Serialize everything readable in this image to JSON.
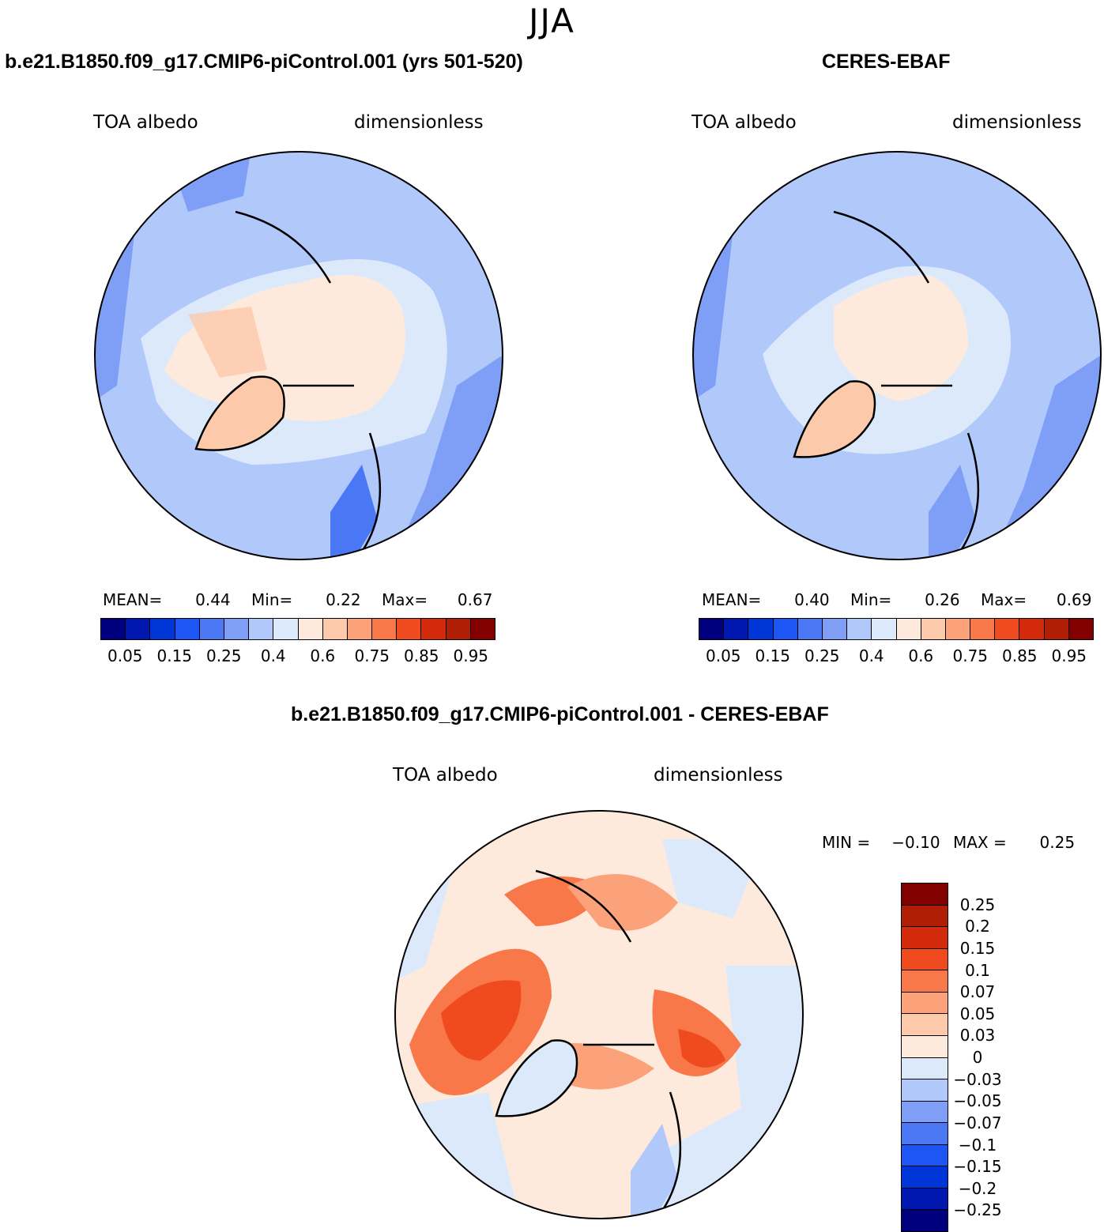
{
  "title": "JJA",
  "panels": [
    {
      "id": "model",
      "title": "b.e21.B1850.f09_g17.CMIP6-piControl.001 (yrs 501-520)",
      "left_label": "TOA albedo",
      "right_label": "dimensionless",
      "stats": {
        "mean_label": "MEAN=",
        "mean": "0.44",
        "min_label": "Min=",
        "min": "0.22",
        "max_label": "Max=",
        "max": "0.67"
      }
    },
    {
      "id": "obs",
      "title": "CERES-EBAF",
      "left_label": "TOA albedo",
      "right_label": "dimensionless",
      "stats": {
        "mean_label": "MEAN=",
        "mean": "0.40",
        "min_label": "Min=",
        "min": "0.26",
        "max_label": "Max=",
        "max": "0.69"
      }
    },
    {
      "id": "diff",
      "title": "b.e21.B1850.f09_g17.CMIP6-piControl.001 - CERES-EBAF",
      "left_label": "TOA albedo",
      "right_label": "dimensionless",
      "stats": {
        "min_label": "MIN =",
        "min": "−0.10",
        "max_label": "MAX =",
        "max": "0.25"
      }
    }
  ],
  "abs_colorbar": {
    "colors": [
      "#00007f",
      "#0018b0",
      "#0036d8",
      "#1e56f5",
      "#4a78f5",
      "#7f9ef5",
      "#b0c8fa",
      "#dce9fb",
      "#fdeadd",
      "#fcc9ab",
      "#fba27a",
      "#f9784a",
      "#f04a1f",
      "#d42a0c",
      "#b01e05",
      "#830000"
    ],
    "tick_labels": [
      "0.05",
      "0.15",
      "0.25",
      "0.4",
      "0.6",
      "0.75",
      "0.85",
      "0.95"
    ]
  },
  "diff_colorbar": {
    "colors": [
      "#830000",
      "#b01e05",
      "#d42a0c",
      "#f04a1f",
      "#f9784a",
      "#fba27a",
      "#fcc9ab",
      "#fdeadd",
      "#dce9fb",
      "#b0c8fa",
      "#7f9ef5",
      "#4a78f5",
      "#1e56f5",
      "#0036d8",
      "#0018b0",
      "#00007f"
    ],
    "tick_labels": [
      "0.25",
      "0.2",
      "0.15",
      "0.1",
      "0.07",
      "0.05",
      "0.03",
      "0",
      "−0.03",
      "−0.05",
      "−0.07",
      "−0.1",
      "−0.15",
      "−0.2",
      "−0.25"
    ]
  },
  "map_colors": {
    "ocean_abs": "#b0c8fa",
    "ocean_low": "#7f9ef5",
    "ice_abs": "#fdeadd",
    "greenland_abs": "#fcc9ab",
    "diff_neutral": "#fdeadd",
    "diff_neg": "#dce9fb",
    "diff_pos_strong": "#f04a1f",
    "diff_pos_mid": "#f9784a"
  }
}
